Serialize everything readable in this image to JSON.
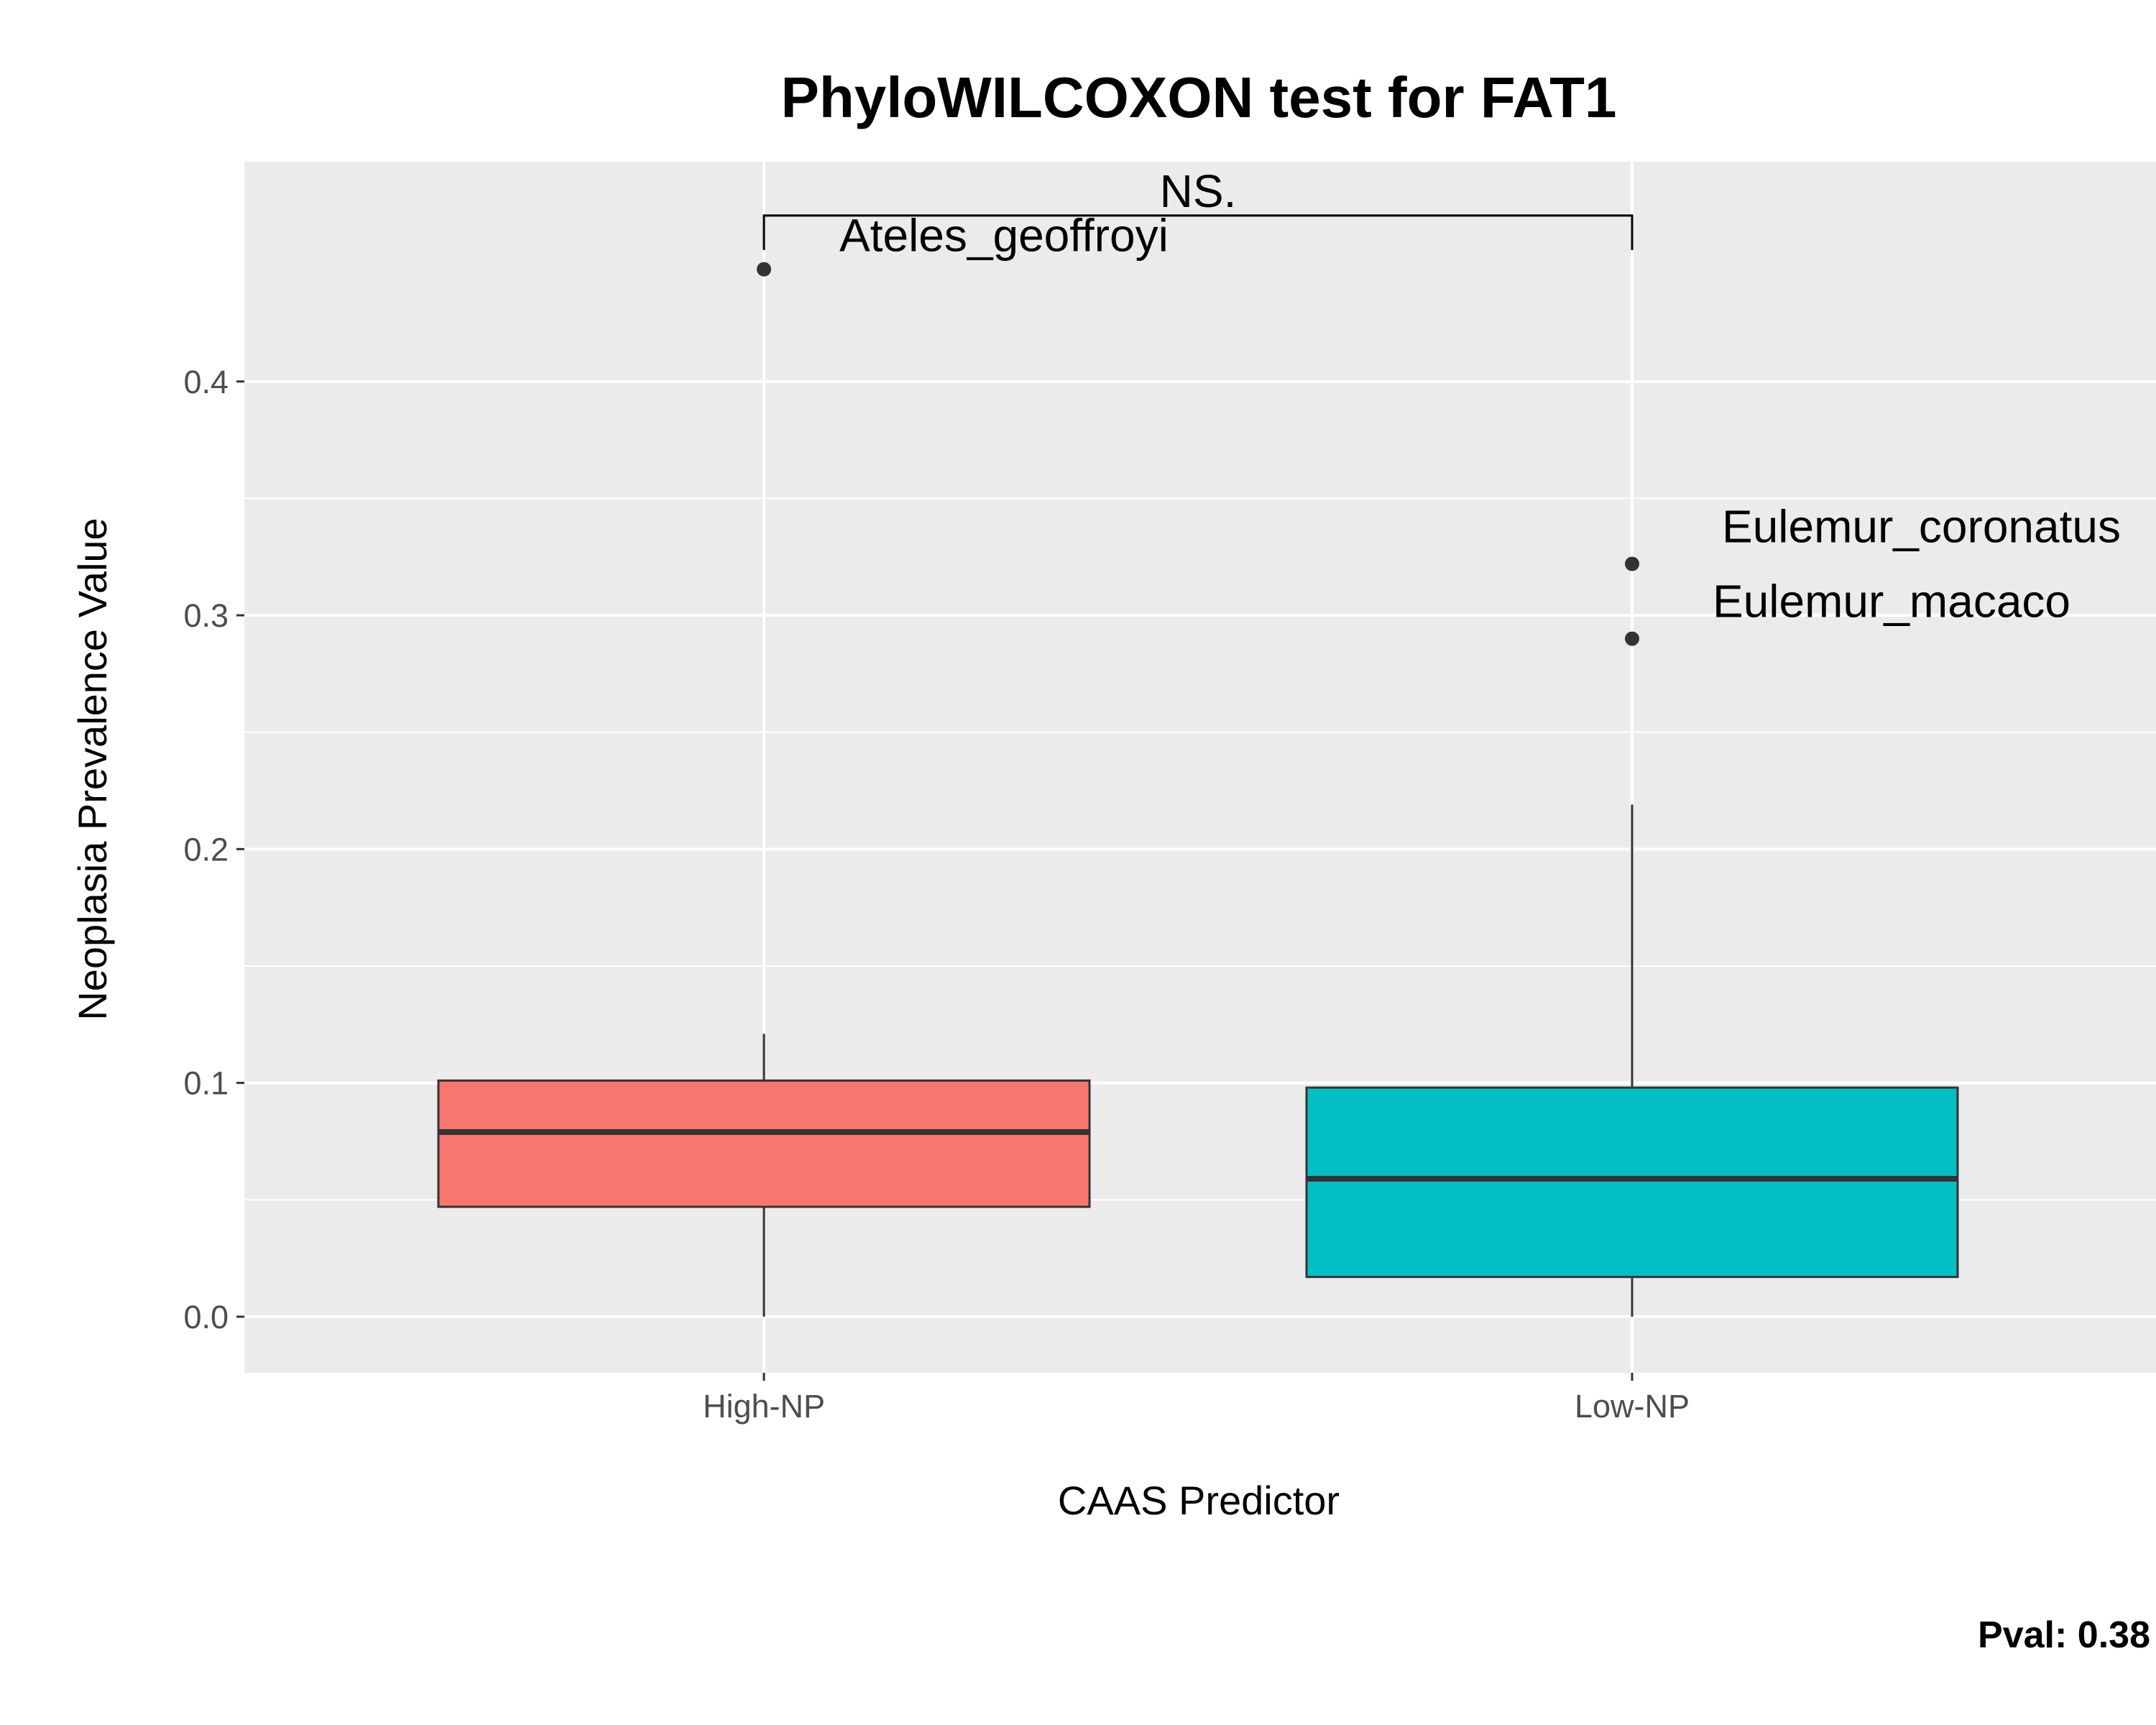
{
  "chart_data": {
    "type": "box",
    "title": "PhyloWILCOXON test for FAT1",
    "xlabel": "CAAS Predictor",
    "ylabel": "Neoplasia Prevalence Value",
    "categories": [
      "High-NP",
      "Low-NP"
    ],
    "ylim": [
      -0.024,
      0.494
    ],
    "y_ticks": [
      0.0,
      0.1,
      0.2,
      0.3,
      0.4
    ],
    "y_tick_labels": [
      "0.0",
      "0.1",
      "0.2",
      "0.3",
      "0.4"
    ],
    "grid": true,
    "boxes": [
      {
        "category": "High-NP",
        "color": "#F8766D",
        "lower_whisker": 0.0,
        "q1": 0.047,
        "median": 0.079,
        "q3": 0.101,
        "upper_whisker": 0.121,
        "outliers": [
          {
            "value": 0.448,
            "label": "Ateles_geoffroyi"
          }
        ]
      },
      {
        "category": "Low-NP",
        "color": "#00BFC4",
        "lower_whisker": 0.0,
        "q1": 0.017,
        "median": 0.059,
        "q3": 0.098,
        "upper_whisker": 0.219,
        "outliers": [
          {
            "value": 0.322,
            "label": "Eulemur_coronatus"
          },
          {
            "value": 0.29,
            "label": "Eulemur_macaco"
          }
        ]
      }
    ],
    "significance": {
      "label": "NS.",
      "bracket_y": 0.471
    },
    "pval_label": "Pval:",
    "pval_value": "0.38"
  }
}
